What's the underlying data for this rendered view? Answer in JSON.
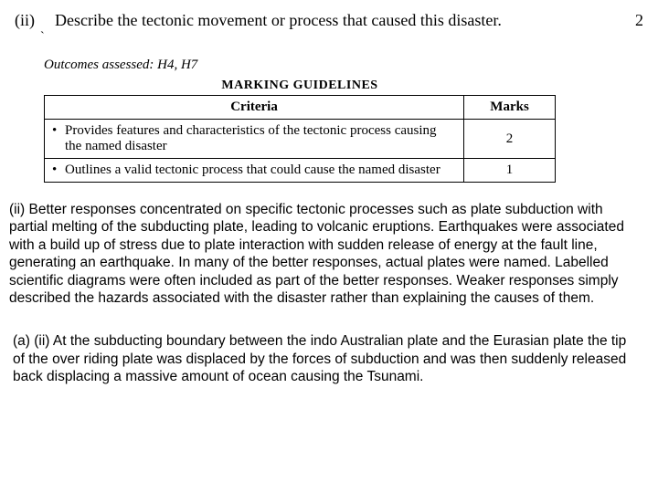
{
  "question": {
    "number": "(ii)",
    "text": "Describe the tectonic movement or process that caused this disaster.",
    "marks": "2"
  },
  "stray_mark": "`",
  "outcomes": "Outcomes assessed: H4, H7",
  "rubric": {
    "title": "MARKING GUIDELINES",
    "headers": {
      "criteria": "Criteria",
      "marks": "Marks"
    },
    "rows": [
      {
        "bullet": "•",
        "criteria": "Provides features and characteristics of the tectonic process causing the named disaster",
        "marks": "2"
      },
      {
        "bullet": "•",
        "criteria": "Outlines a valid tectonic process that could cause the named disaster",
        "marks": "1"
      }
    ]
  },
  "commentary": "(ii) Better responses concentrated on specific tectonic processes such as plate subduction with partial melting of the subducting plate, leading to volcanic eruptions. Earthquakes were associated with a build up of stress due to plate interaction with sudden release of energy at the fault line, generating an earthquake. In many of the better responses, actual plates were named. Labelled scientific diagrams were often included as part of the better responses. Weaker responses simply described the hazards associated with the disaster rather than explaining the causes of them.",
  "sample": "(a) (ii) At the subducting boundary between the indo Australian plate and the Eurasian plate the tip of the over riding plate was displaced by the forces of subduction and was then suddenly released back displacing a massive amount of ocean causing the Tsunami."
}
